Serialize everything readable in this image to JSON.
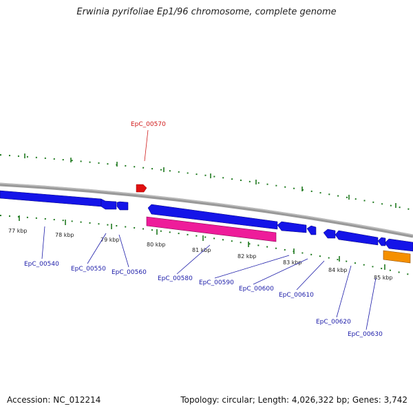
{
  "title": "Erwinia pyrifoliae Ep1/96 chromosome, complete genome",
  "footer": {
    "accession": "Accession: NC_012214",
    "stats": "Topology: circular; Length: 4,026,322 bp; Genes: 3,742"
  },
  "colors": {
    "backbone": "#8c8c8c",
    "tick": "#1f7a1f",
    "forward_gene": "#e01010",
    "reverse_gene": "#1010e0",
    "rrna": "#e81c96",
    "trna": "#f08c00",
    "label": "#1a1aa8",
    "label_highlight": "#d01818"
  },
  "scale_labels": [
    "77 kbp",
    "78 kbp",
    "79 kbp",
    "80 kbp",
    "81 kbp",
    "82 kbp",
    "83 kbp",
    "84 kbp",
    "85 kbp"
  ],
  "gene_labels": [
    "EpC_00540",
    "EpC_00550",
    "EpC_00560",
    "EpC_00570",
    "EpC_00580",
    "EpC_00590",
    "EpC_00600",
    "EpC_00610",
    "EpC_00620",
    "EpC_00630"
  ]
}
